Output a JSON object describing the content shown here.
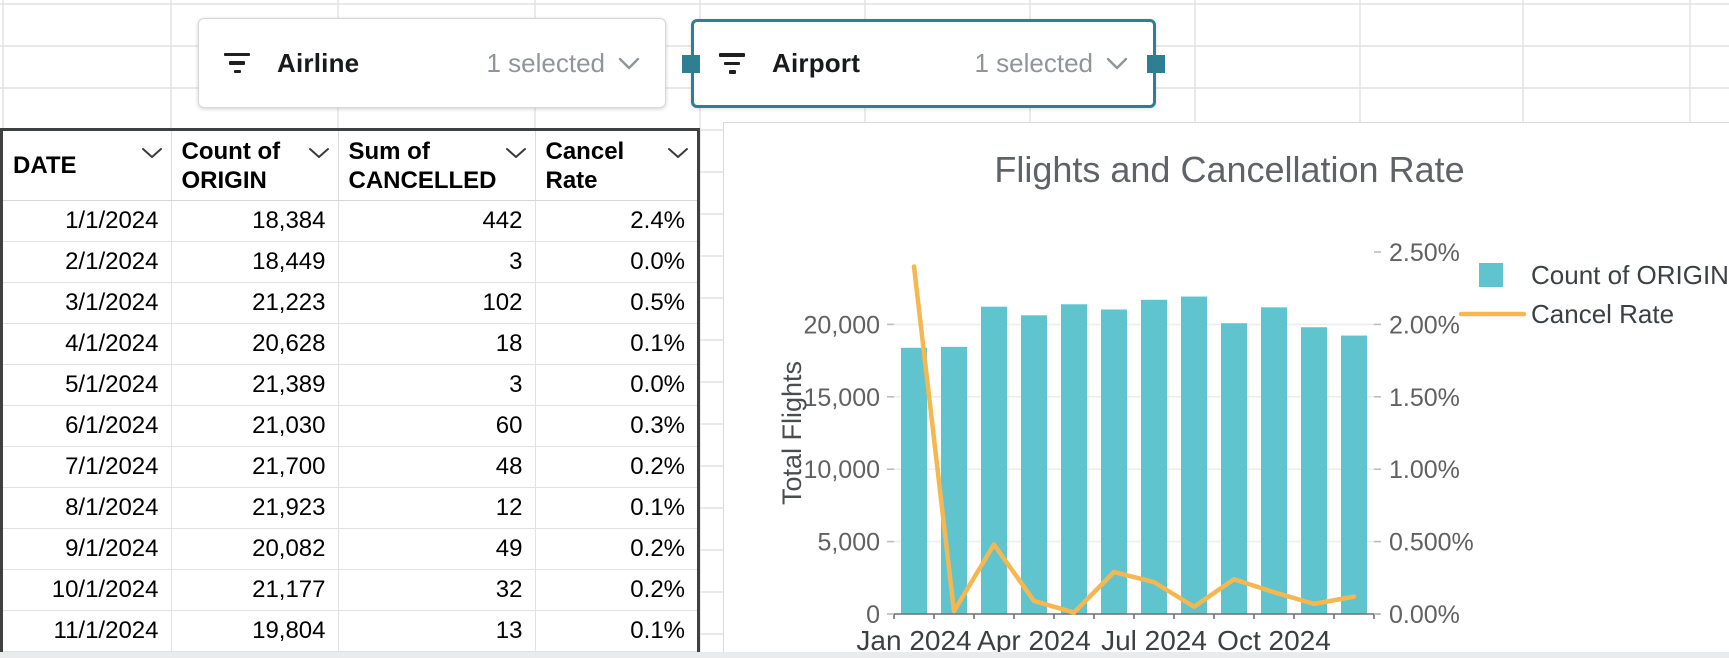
{
  "slicers": [
    {
      "label": "Airline",
      "status": "1 selected",
      "selected": false
    },
    {
      "label": "Airport",
      "status": "1 selected",
      "selected": true
    }
  ],
  "table": {
    "columns": [
      {
        "line1": "DATE",
        "line2": ""
      },
      {
        "line1": "Count of",
        "line2": "ORIGIN"
      },
      {
        "line1": "Sum of",
        "line2": "CANCELLED"
      },
      {
        "line1": "Cancel",
        "line2": "Rate"
      }
    ],
    "rows": [
      [
        "1/1/2024",
        "18,384",
        "442",
        "2.4%"
      ],
      [
        "2/1/2024",
        "18,449",
        "3",
        "0.0%"
      ],
      [
        "3/1/2024",
        "21,223",
        "102",
        "0.5%"
      ],
      [
        "4/1/2024",
        "20,628",
        "18",
        "0.1%"
      ],
      [
        "5/1/2024",
        "21,389",
        "3",
        "0.0%"
      ],
      [
        "6/1/2024",
        "21,030",
        "60",
        "0.3%"
      ],
      [
        "7/1/2024",
        "21,700",
        "48",
        "0.2%"
      ],
      [
        "8/1/2024",
        "21,923",
        "12",
        "0.1%"
      ],
      [
        "9/1/2024",
        "20,082",
        "49",
        "0.2%"
      ],
      [
        "10/1/2024",
        "21,177",
        "32",
        "0.2%"
      ],
      [
        "11/1/2024",
        "19,804",
        "13",
        "0.1%"
      ]
    ]
  },
  "chart_data": {
    "type": "combo",
    "title": "Flights and Cancellation Rate",
    "categories": [
      "Jan 2024",
      "Feb 2024",
      "Mar 2024",
      "Apr 2024",
      "May 2024",
      "Jun 2024",
      "Jul 2024",
      "Aug 2024",
      "Sep 2024",
      "Oct 2024",
      "Nov 2024",
      "Dec 2024"
    ],
    "x_tick_labels": [
      "Jan 2024",
      "Apr 2024",
      "Jul 2024",
      "Oct 2024"
    ],
    "x_tick_indices": [
      0,
      3,
      6,
      9
    ],
    "series": [
      {
        "name": "Count of ORIGIN",
        "type": "bar",
        "axis": "left",
        "values": [
          18384,
          18449,
          21223,
          20628,
          21389,
          21030,
          21700,
          21923,
          20082,
          21177,
          19804,
          19230
        ]
      },
      {
        "name": "Cancel Rate",
        "type": "line",
        "axis": "right",
        "values_percent": [
          2.4,
          0.02,
          0.48,
          0.09,
          0.01,
          0.29,
          0.22,
          0.05,
          0.24,
          0.15,
          0.07,
          0.12
        ]
      }
    ],
    "left_axis": {
      "title": "Total Flights",
      "ticks": [
        0,
        5000,
        10000,
        15000,
        20000
      ],
      "max": 25000
    },
    "right_axis": {
      "ticks": [
        "0.00%",
        "0.500%",
        "1.00%",
        "1.50%",
        "2.00%",
        "2.50%"
      ],
      "max": 2.5
    },
    "legend_position": "right",
    "grid": true
  },
  "colors": {
    "bar_teal": "#5fc4ce",
    "line_orange": "#f6b750",
    "slicer_selection": "#2d7f91",
    "grid_line": "#e2e2e2",
    "table_border": "#3f4042",
    "axis_text": "#616161",
    "x_label_text": "#3c4043",
    "legend_text": "#3c4043",
    "title_text": "#5f6368",
    "status_text": "#8f959b"
  }
}
